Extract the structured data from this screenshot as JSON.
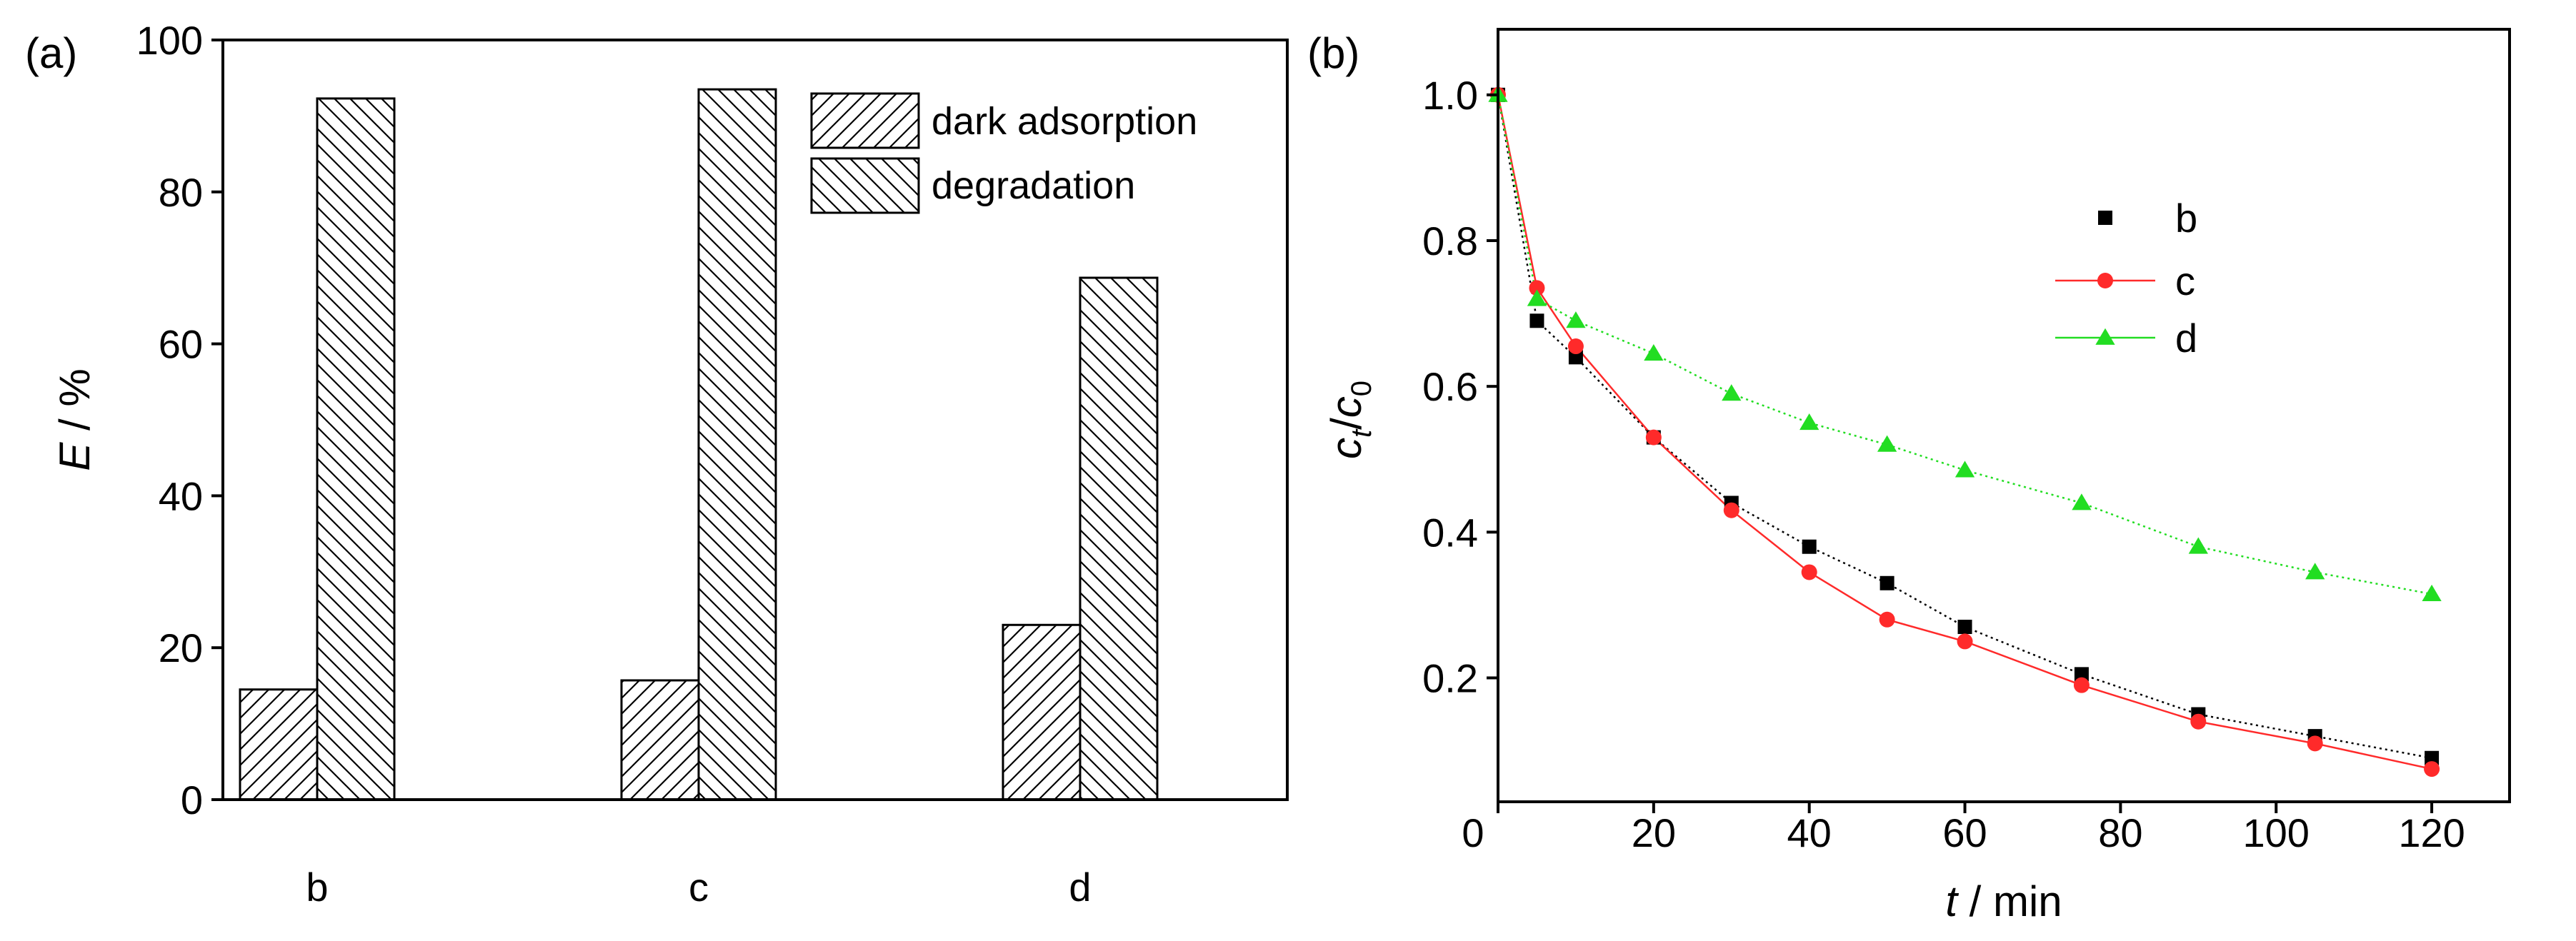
{
  "chart_data": [
    {
      "type": "bar",
      "panel_label": "(a)",
      "categories": [
        "b",
        "c",
        "d"
      ],
      "series": [
        {
          "name": "dark adsorption",
          "values": [
            14.5,
            15.7,
            23.0
          ]
        },
        {
          "name": "degradation",
          "values": [
            92.3,
            93.5,
            68.7
          ]
        }
      ],
      "ylabel_italic": "E",
      "ylabel_rest": " / %",
      "ylim": [
        0,
        100
      ],
      "yticks": [
        0,
        20,
        40,
        60,
        80,
        100
      ],
      "legend_position": "top-right"
    },
    {
      "type": "line",
      "panel_label": "(b)",
      "series": [
        {
          "name": "b",
          "marker": "square",
          "color": "#000000",
          "linestyle": "dotted",
          "x": [
            0,
            5,
            10,
            20,
            30,
            40,
            50,
            60,
            75,
            90,
            105,
            120
          ],
          "y": [
            1.0,
            0.69,
            0.64,
            0.53,
            0.44,
            0.38,
            0.33,
            0.27,
            0.205,
            0.15,
            0.12,
            0.09
          ]
        },
        {
          "name": "c",
          "marker": "circle",
          "color": "#ff2a2a",
          "linestyle": "solid",
          "x": [
            0,
            5,
            10,
            20,
            30,
            40,
            50,
            60,
            75,
            90,
            105,
            120
          ],
          "y": [
            1.0,
            0.735,
            0.655,
            0.53,
            0.43,
            0.345,
            0.28,
            0.25,
            0.19,
            0.14,
            0.11,
            0.075
          ]
        },
        {
          "name": "d",
          "marker": "triangle",
          "color": "#22dd22",
          "linestyle": "dotted",
          "x": [
            0,
            5,
            10,
            20,
            30,
            40,
            50,
            60,
            75,
            90,
            105,
            120
          ],
          "y": [
            1.0,
            0.72,
            0.69,
            0.645,
            0.59,
            0.55,
            0.52,
            0.485,
            0.44,
            0.38,
            0.345,
            0.315
          ]
        }
      ],
      "xlabel_italic": "t",
      "xlabel_rest": " / min",
      "ylabel_c": "c",
      "ylabel_sub_t": "t",
      "ylabel_slash": "/",
      "ylabel_sub_0": "0",
      "xlim": [
        0,
        130
      ],
      "ylim": [
        0.03,
        1.09
      ],
      "xticks": [
        0,
        20,
        40,
        60,
        80,
        100,
        120
      ],
      "yticks": [
        0.2,
        0.4,
        0.6,
        0.8,
        1.0
      ],
      "ytick_labels": [
        "0.2",
        "0.4",
        "0.6",
        "0.8",
        "1.0"
      ],
      "legend_position": "upper-center"
    }
  ]
}
